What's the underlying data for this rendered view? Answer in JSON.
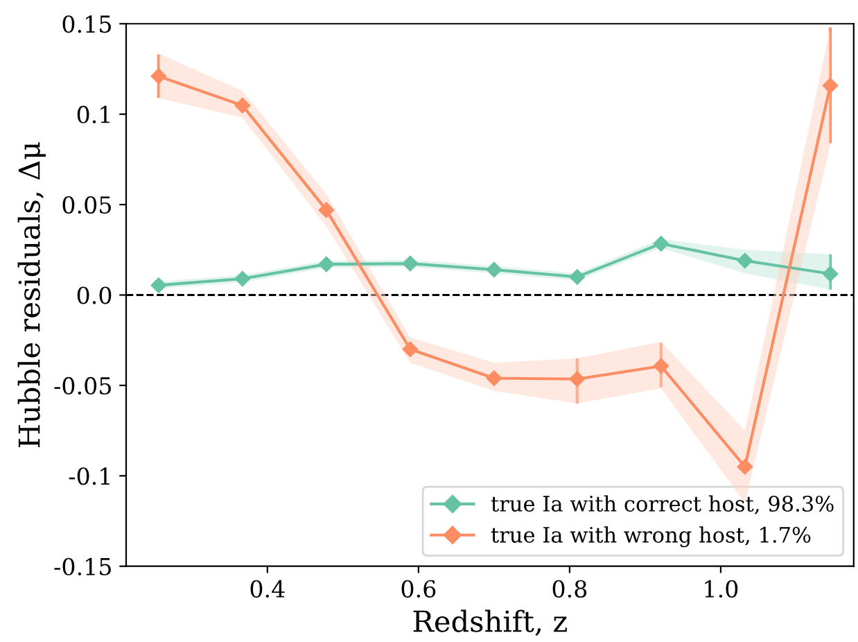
{
  "chart_data": {
    "type": "line",
    "xlabel": "Redshift, z",
    "ylabel": "Hubble residuals, Δμ",
    "x": [
      0.256,
      0.367,
      0.478,
      0.589,
      0.7,
      0.81,
      0.921,
      1.032,
      1.145
    ],
    "xlim": [
      0.213,
      1.176
    ],
    "xticks": [
      0.4,
      0.6,
      0.8,
      {
        "value": 1.0,
        "label": "1.0"
      }
    ],
    "ylim": [
      -0.15,
      0.15
    ],
    "yticks": [
      {
        "value": -0.15,
        "label": "-0.15"
      },
      {
        "value": -0.1,
        "label": "-0.1"
      },
      {
        "value": -0.05,
        "label": "-0.05"
      },
      {
        "value": 0.0,
        "label": "0.0"
      },
      {
        "value": 0.05,
        "label": "0.05"
      },
      {
        "value": 0.1,
        "label": "0.1"
      },
      {
        "value": 0.15,
        "label": "0.15"
      }
    ],
    "marker": "diamond",
    "line_style": "solid",
    "grid": false,
    "legend": "bottom right",
    "ref_lines": [
      {
        "axis": "y",
        "value": 0,
        "color": "#000000",
        "line_style": "dashed"
      }
    ],
    "series": [
      {
        "name": "true Ia with correct host, 98.3%",
        "color": "#66c2a5",
        "values": [
          0.0054,
          0.009,
          0.017,
          0.0174,
          0.014,
          0.01,
          0.0284,
          0.019,
          0.0117
        ],
        "errors": [
          null,
          null,
          null,
          null,
          null,
          null,
          null,
          null,
          [
            0.003,
            0.0225
          ]
        ],
        "lower": [
          0.0035,
          0.007,
          0.015,
          0.0155,
          0.012,
          0.008,
          0.026,
          0.012,
          0.003
        ],
        "upper": [
          0.0075,
          0.011,
          0.019,
          0.0195,
          0.016,
          0.012,
          0.031,
          0.025,
          0.0225
        ]
      },
      {
        "name": "true Ia with wrong host, 1.7%",
        "color": "#fc8d62",
        "values": [
          0.121,
          0.1048,
          0.047,
          -0.03,
          -0.046,
          -0.0465,
          -0.0393,
          -0.095,
          0.1158
        ],
        "errors": [
          [
            0.109,
            0.133
          ],
          null,
          null,
          null,
          null,
          [
            -0.06,
            -0.035
          ],
          [
            -0.051,
            -0.0265
          ],
          null,
          [
            0.084,
            0.148
          ]
        ],
        "lower": [
          0.109,
          0.098,
          0.038,
          -0.0375,
          -0.053,
          -0.06,
          -0.0516,
          -0.115,
          0.083
        ],
        "upper": [
          0.1335,
          0.113,
          0.0557,
          -0.0235,
          -0.0375,
          -0.035,
          -0.026,
          -0.075,
          0.148
        ]
      }
    ]
  }
}
